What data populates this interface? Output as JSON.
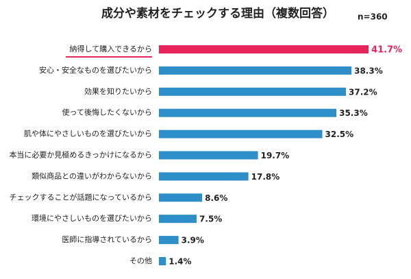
{
  "chart_data": {
    "type": "hbar",
    "title": "成分や素材をチェックする理由（複数回答）",
    "subtitle": "n=360",
    "categories": [
      "納得して購入できるから",
      "安心・安全なものを選びたいから",
      "効果を知りたいから",
      "使って後悔したくないから",
      "肌や体にやさしいものを選びたいから",
      "本当に必要か見極めるきっかけになるから",
      "類似商品との違いがわからないから",
      "チェックすることが話題になっているから",
      "環境にやさしいものを選びたいから",
      "医師に指導されているから",
      "その他"
    ],
    "values": [
      41.7,
      38.3,
      37.2,
      35.3,
      32.5,
      19.7,
      17.8,
      8.6,
      7.5,
      3.9,
      1.4
    ],
    "value_labels": [
      "41.7%",
      "38.3%",
      "37.2%",
      "35.3%",
      "32.5%",
      "19.7%",
      "17.8%",
      "8.6%",
      "7.5%",
      "3.9%",
      "1.4%"
    ],
    "colors": [
      "#e6245c",
      "#2e8fc8",
      "#2e8fc8",
      "#2e8fc8",
      "#2e8fc8",
      "#2e8fc8",
      "#2e8fc8",
      "#2e8fc8",
      "#2e8fc8",
      "#2e8fc8",
      "#2e8fc8"
    ]
  }
}
